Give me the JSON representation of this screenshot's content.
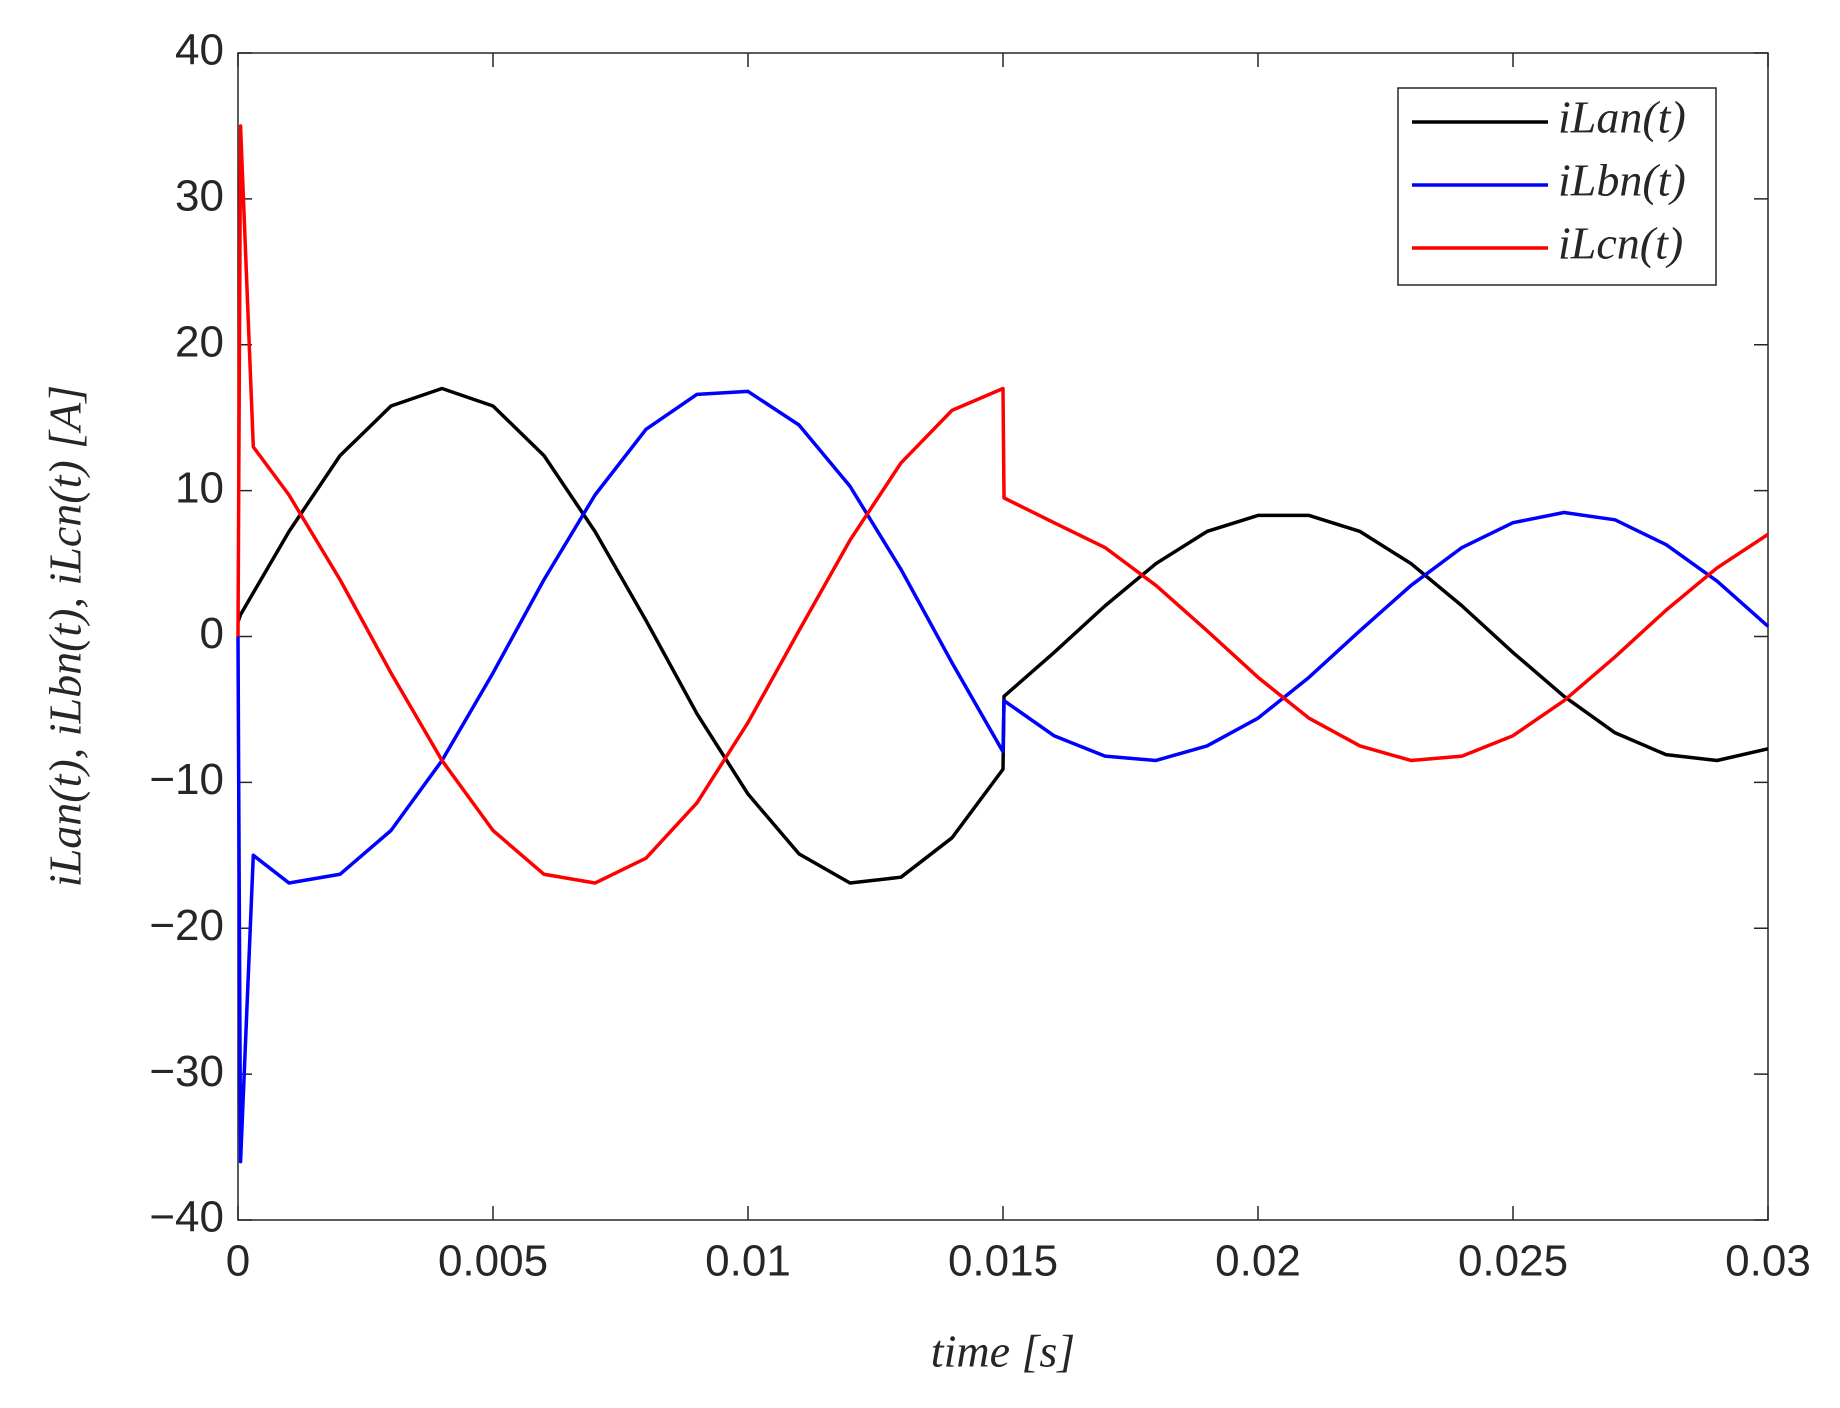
{
  "chart_data": {
    "type": "line",
    "xlabel": "time [s]",
    "ylabel": "iLan(t), iLbn(t), iLcn(t) [A]",
    "x": [
      0,
      5e-05,
      0.0003,
      0.001,
      0.002,
      0.003,
      0.004,
      0.005,
      0.006,
      0.007,
      0.008,
      0.009,
      0.01,
      0.011,
      0.012,
      0.013,
      0.014,
      0.015,
      0.01502,
      0.016,
      0.017,
      0.018,
      0.019,
      0.02,
      0.021,
      0.022,
      0.023,
      0.024,
      0.025,
      0.026,
      0.027,
      0.028,
      0.029,
      0.03
    ],
    "series": [
      {
        "name": "iLan(t)",
        "color": "#000000",
        "values": [
          1,
          1.5,
          3,
          7.2,
          12.4,
          15.8,
          17.0,
          15.8,
          12.4,
          7.2,
          1.1,
          -5.3,
          -10.8,
          -14.9,
          -16.9,
          -16.5,
          -13.8,
          -9.1,
          -4.1,
          -1.1,
          2.1,
          5.0,
          7.2,
          8.3,
          8.3,
          7.2,
          5.0,
          2.1,
          -1.1,
          -4.1,
          -6.6,
          -8.1,
          -8.5,
          -7.7
        ]
      },
      {
        "name": "iLbn(t)",
        "color": "#0000ff",
        "values": [
          0,
          -36,
          -15,
          -16.9,
          -16.3,
          -13.3,
          -8.5,
          -2.5,
          3.9,
          9.7,
          14.2,
          16.6,
          16.8,
          14.5,
          10.3,
          4.6,
          -1.8,
          -7.9,
          -4.4,
          -6.8,
          -8.2,
          -8.5,
          -7.5,
          -5.6,
          -2.8,
          0.4,
          3.5,
          6.1,
          7.8,
          8.5,
          8.0,
          6.3,
          3.8,
          0.7
        ]
      },
      {
        "name": "iLcn(t)",
        "color": "#ff0000",
        "values": [
          0,
          35,
          13,
          9.7,
          3.9,
          -2.5,
          -8.5,
          -13.3,
          -16.3,
          -16.9,
          -15.2,
          -11.4,
          -5.9,
          0.4,
          6.6,
          11.9,
          15.5,
          17.0,
          9.5,
          7.8,
          6.1,
          3.5,
          0.4,
          -2.8,
          -5.6,
          -7.5,
          -8.5,
          -8.2,
          -6.8,
          -4.4,
          -1.4,
          1.8,
          4.7,
          7.0
        ]
      }
    ],
    "xlim": [
      0,
      0.03
    ],
    "xticks": [
      0,
      0.005,
      0.01,
      0.015,
      0.02,
      0.025,
      0.03
    ],
    "ylim": [
      -40,
      40
    ],
    "yticks": [
      {
        "value": -40,
        "label": "−40"
      },
      {
        "value": -30,
        "label": "−30"
      },
      {
        "value": -20,
        "label": "−20"
      },
      {
        "value": -10,
        "label": "−10"
      },
      0,
      10,
      20,
      30,
      40
    ],
    "legend": "upper right",
    "grid": false
  }
}
